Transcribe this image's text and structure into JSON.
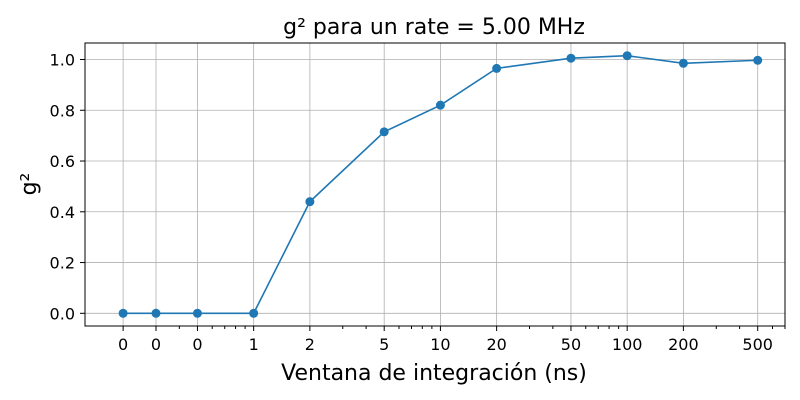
{
  "chart_data": {
    "type": "line",
    "title": "g² para un rate = 5.00 MHz",
    "xlabel": "Ventana de integración (ns)",
    "ylabel": "g²",
    "x_scale": "log",
    "xlim": [
      0.125,
      700
    ],
    "ylim": [
      -0.05,
      1.065
    ],
    "x_ticks": [
      0.2,
      0.3,
      0.5,
      1,
      2,
      5,
      10,
      20,
      50,
      100,
      200,
      500
    ],
    "x_tick_labels": [
      "0",
      "0",
      "0",
      "1",
      "2",
      "5",
      "10",
      "20",
      "50",
      "100",
      "200",
      "500"
    ],
    "y_ticks": [
      0.0,
      0.2,
      0.4,
      0.6,
      0.8,
      1.0
    ],
    "y_tick_labels": [
      "0.0",
      "0.2",
      "0.4",
      "0.6",
      "0.8",
      "1.0"
    ],
    "grid": true,
    "series": [
      {
        "color": "#1f77b4",
        "x": [
          0.2,
          0.3,
          0.5,
          1,
          2,
          5,
          10,
          20,
          50,
          100,
          200,
          500
        ],
        "y": [
          0.0,
          0.0,
          0.0,
          0.0,
          0.44,
          0.715,
          0.82,
          0.965,
          1.005,
          1.015,
          0.985,
          0.997
        ]
      }
    ]
  }
}
